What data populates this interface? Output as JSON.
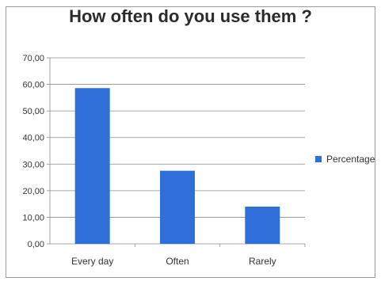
{
  "chart_data": {
    "type": "bar",
    "title": "How often do you use them ?",
    "categories": [
      "Every day",
      "Often",
      "Rarely"
    ],
    "series": [
      {
        "name": "Percentage",
        "values": [
          58.6,
          27.5,
          14.0
        ],
        "color": "#2f6fd9"
      }
    ],
    "ylim": [
      0,
      70
    ],
    "ytick_step": 10,
    "yticks": [
      "0,00",
      "10,00",
      "20,00",
      "30,00",
      "40,00",
      "50,00",
      "60,00",
      "70,00"
    ],
    "grid": true,
    "legend_position": "right"
  }
}
